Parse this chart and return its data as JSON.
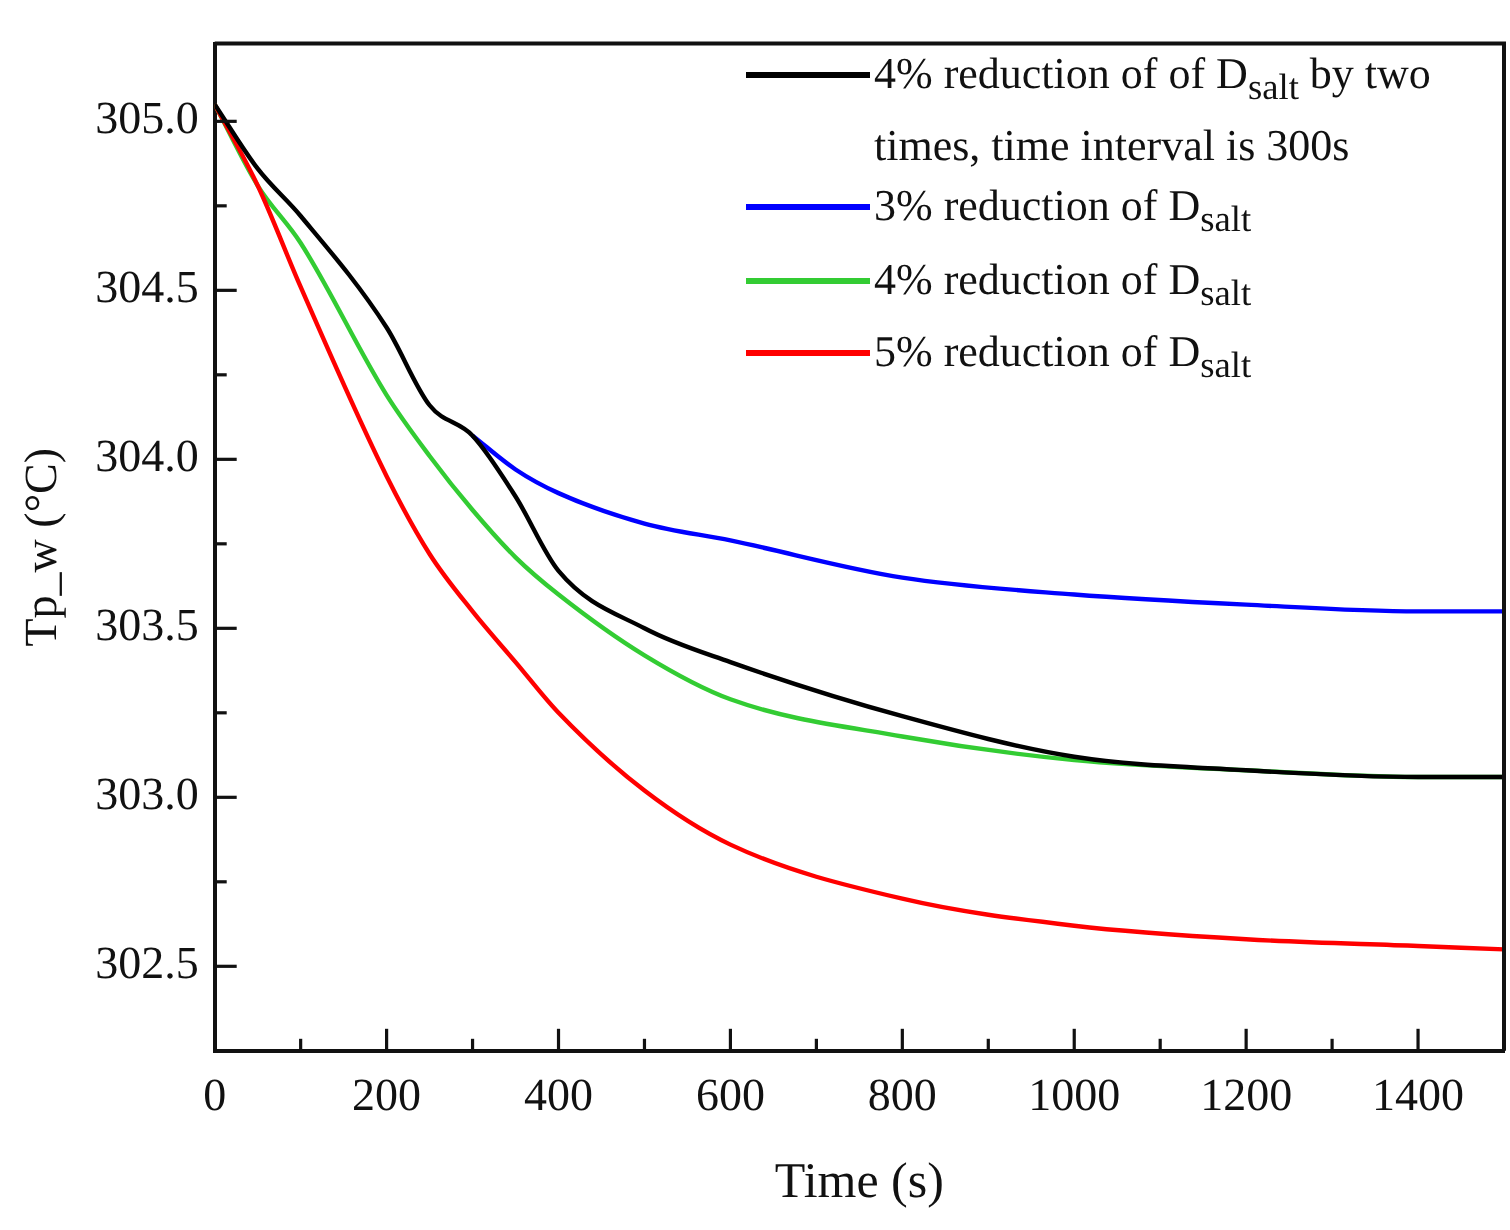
{
  "chart_data": {
    "type": "line",
    "xlabel": "Time (s)",
    "ylabel": "Tp_w (°C)",
    "xlim": [
      0,
      1500
    ],
    "ylim": [
      302.25,
      305.23
    ],
    "xticks": [
      0,
      {
        "value": 100,
        "label": null
      },
      200,
      {
        "value": 300,
        "label": null
      },
      400,
      {
        "value": 500,
        "label": null
      },
      600,
      {
        "value": 700,
        "label": null
      },
      800,
      {
        "value": 900,
        "label": null
      },
      1000,
      {
        "value": 1100,
        "label": null
      },
      1200,
      {
        "value": 1300,
        "label": null
      },
      1400
    ],
    "yticks": [
      {
        "value": 302.5,
        "label": "302.5"
      },
      {
        "value": 302.75,
        "label": null
      },
      {
        "value": 303,
        "label": "303.0"
      },
      {
        "value": 303.25,
        "label": null
      },
      {
        "value": 303.5,
        "label": "303.5"
      },
      {
        "value": 303.75,
        "label": null
      },
      {
        "value": 304,
        "label": "304.0"
      },
      {
        "value": 304.25,
        "label": null
      },
      {
        "value": 304.5,
        "label": "304.5"
      },
      {
        "value": 304.75,
        "label": null
      },
      {
        "value": 305,
        "label": "305.0"
      }
    ],
    "legend": "top right",
    "marker": "none",
    "x": [
      0,
      50,
      100,
      200,
      250,
      300,
      350,
      400,
      500,
      600,
      800,
      1000,
      1200,
      1400,
      1500
    ],
    "series": [
      {
        "name": "3% reduction of D$_{salt}$",
        "color": "#0000ff",
        "values": [
          null,
          null,
          null,
          null,
          null,
          304.07,
          303.97,
          303.9,
          303.81,
          303.76,
          303.65,
          303.6,
          303.57,
          303.55,
          303.55
        ]
      },
      {
        "name": "4% reduction of D$_{salt}$",
        "color": "#33cc33",
        "values": [
          305.05,
          304.81,
          304.64,
          304.19,
          304.01,
          303.85,
          303.71,
          303.6,
          303.42,
          303.29,
          303.18,
          303.11,
          303.08,
          303.06,
          303.06
        ]
      },
      {
        "name": "5% reduction  of D$_{salt}$",
        "color": "#ff0000",
        "values": [
          305.05,
          304.81,
          304.51,
          303.95,
          303.72,
          303.55,
          303.4,
          303.25,
          303.02,
          302.86,
          302.7,
          302.62,
          302.58,
          302.56,
          302.55
        ]
      },
      {
        "name": "4% reduction of of D$_{salt}$ by two times, time interval is 300s",
        "color": "#000000",
        "values": [
          305.05,
          304.86,
          304.72,
          304.39,
          304.16,
          304.07,
          303.89,
          303.67,
          303.5,
          303.4,
          303.24,
          303.12,
          303.08,
          303.06,
          303.06
        ]
      }
    ]
  }
}
